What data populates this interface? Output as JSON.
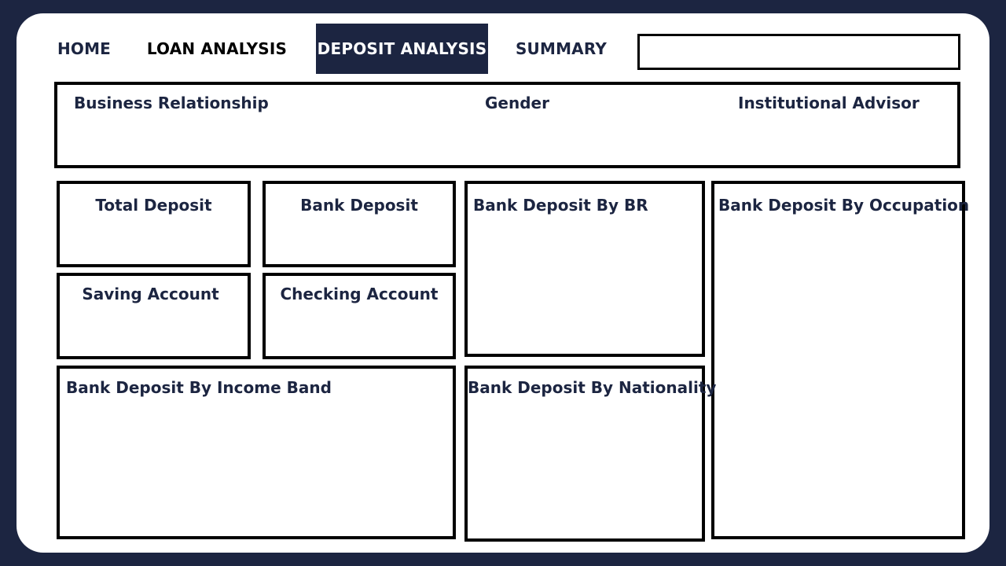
{
  "nav": {
    "tabs": [
      {
        "label": "HOME"
      },
      {
        "label": "LOAN ANALYSIS"
      },
      {
        "label": "DEPOSIT ANALYSIS",
        "active": true
      },
      {
        "label": "SUMMARY"
      }
    ]
  },
  "search": {
    "value": ""
  },
  "filters": {
    "business_relationship": "Business Relationship",
    "gender": "Gender",
    "institutional_advisor": "Institutional Advisor"
  },
  "kpis": {
    "total_deposit": "Total Deposit",
    "bank_deposit": "Bank Deposit",
    "saving_account": "Saving Account",
    "checking_account": "Checking Account"
  },
  "charts": {
    "by_br": "Bank Deposit By BR",
    "by_occupation": "Bank Deposit By Occupation",
    "by_income_band": "Bank Deposit By Income Band",
    "by_nationality": "Bank Deposit By Nationality"
  },
  "colors": {
    "background": "#1c2541",
    "accent": "#1c2541",
    "panel_border": "#000000",
    "card": "#ffffff"
  }
}
